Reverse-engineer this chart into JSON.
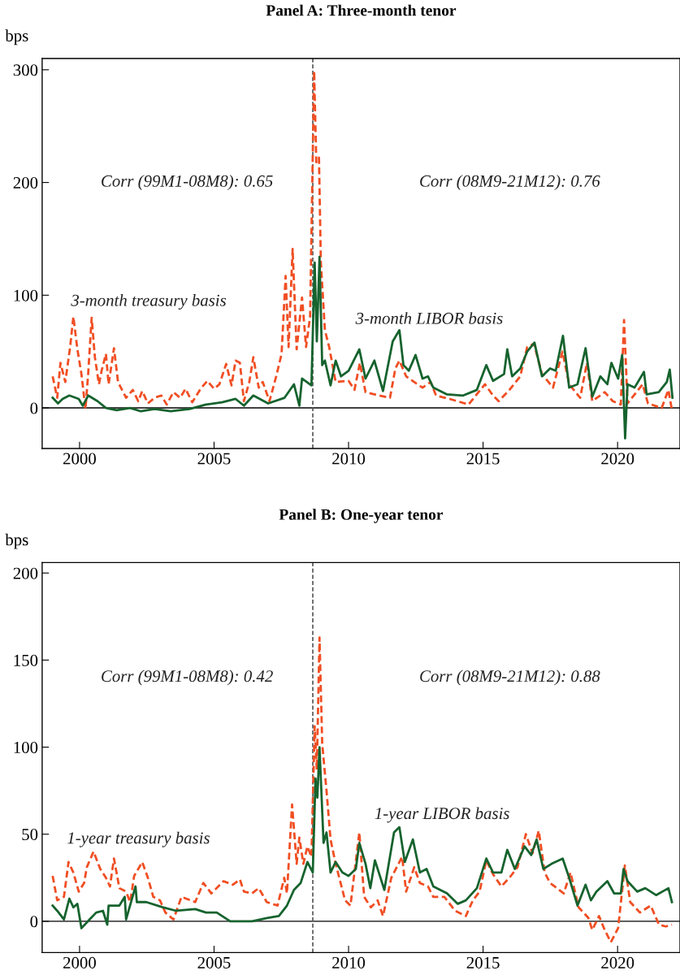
{
  "chart_data": [
    {
      "type": "line",
      "title": "Panel A: Three-month tenor",
      "ylabel": "bps",
      "xlim": [
        1998.61,
        2022.32
      ],
      "xticks": [
        2000,
        2005,
        2010,
        2015,
        2020
      ],
      "ylim": [
        -36,
        310
      ],
      "yticks": [
        0,
        100,
        200,
        300
      ],
      "grid": false,
      "ref_lines": [
        {
          "axis": "y",
          "value": 0,
          "color": "#000000",
          "line_style": "solid"
        },
        {
          "axis": "x",
          "value": 2008.67,
          "color": "#555555",
          "line_style": "dashed"
        }
      ],
      "annotations": [
        "Corr (99M1-08M8): 0.65",
        "Corr (08M9-21M12): 0.76"
      ],
      "series": [
        {
          "name": "3-month treasury basis",
          "color": "#f04e23",
          "line_style": "dashed",
          "x": [
            1999.0,
            1999.17,
            1999.29,
            1999.47,
            1999.65,
            1999.77,
            1999.92,
            2000.07,
            2000.22,
            2000.32,
            2000.45,
            2000.57,
            2000.72,
            2000.82,
            2000.98,
            2001.08,
            2001.28,
            2001.43,
            2001.58,
            2001.73,
            2001.98,
            2002.18,
            2002.33,
            2002.54,
            2002.79,
            2003.04,
            2003.24,
            2003.49,
            2003.74,
            2003.94,
            2004.19,
            2004.5,
            2004.75,
            2005.0,
            2005.2,
            2005.45,
            2005.65,
            2005.8,
            2005.96,
            2006.11,
            2006.31,
            2006.46,
            2006.66,
            2006.81,
            2007.06,
            2007.31,
            2007.51,
            2007.66,
            2007.77,
            2007.92,
            2008.07,
            2008.27,
            2008.42,
            2008.57,
            2008.72,
            2008.8,
            2008.9,
            2008.97,
            2009.12,
            2009.28,
            2009.52,
            2010.0,
            2010.22,
            2010.42,
            2010.63,
            2011.13,
            2011.54,
            2011.74,
            2011.89,
            2012.14,
            2012.44,
            2012.75,
            2013.05,
            2013.25,
            2013.76,
            2014.46,
            2015.07,
            2015.37,
            2015.58,
            2015.98,
            2016.38,
            2016.64,
            2016.89,
            2017.19,
            2017.6,
            2017.95,
            2018.2,
            2018.61,
            2018.86,
            2019.06,
            2019.52,
            2019.82,
            2020.12,
            2020.24,
            2020.37,
            2020.93,
            2021.13,
            2021.64,
            2021.89,
            2022.02
          ],
          "values": [
            28,
            9,
            40,
            23,
            54,
            81,
            52,
            30,
            -1,
            30,
            80,
            45,
            21,
            33,
            48,
            21,
            53,
            23,
            16,
            9,
            16,
            6,
            15,
            4,
            9,
            11,
            3,
            14,
            9,
            17,
            5,
            17,
            24,
            17,
            21,
            39,
            20,
            42,
            40,
            6,
            23,
            45,
            18,
            23,
            6,
            28,
            48,
            117,
            54,
            141,
            52,
            98,
            54,
            81,
            299,
            218,
            222,
            129,
            69,
            54,
            23,
            24,
            16,
            40,
            14,
            11,
            9,
            35,
            42,
            28,
            23,
            18,
            23,
            11,
            8,
            3,
            21,
            11,
            6,
            16,
            28,
            54,
            57,
            30,
            18,
            50,
            21,
            9,
            40,
            6,
            14,
            6,
            3,
            78,
            4,
            21,
            4,
            0,
            16,
            -2
          ]
        },
        {
          "name": "3-month LIBOR basis",
          "color": "#16632e",
          "line_style": "solid",
          "x": [
            1999.0,
            1999.2,
            1999.37,
            1999.62,
            1999.97,
            2000.12,
            2000.32,
            2000.67,
            2000.98,
            2001.38,
            2001.88,
            2002.28,
            2002.79,
            2003.39,
            2004.09,
            2004.7,
            2005.3,
            2005.8,
            2006.11,
            2006.46,
            2007.01,
            2007.62,
            2007.97,
            2008.17,
            2008.27,
            2008.62,
            2008.74,
            2008.82,
            2008.92,
            2009.02,
            2009.12,
            2009.33,
            2009.52,
            2009.72,
            2010.0,
            2010.4,
            2010.63,
            2010.96,
            2011.28,
            2011.64,
            2011.89,
            2012.04,
            2012.24,
            2012.49,
            2012.75,
            2012.95,
            2013.15,
            2013.66,
            2014.26,
            2014.77,
            2015.12,
            2015.37,
            2015.78,
            2015.9,
            2016.08,
            2016.38,
            2016.64,
            2016.91,
            2017.19,
            2017.49,
            2017.7,
            2017.97,
            2018.2,
            2018.51,
            2018.81,
            2019.06,
            2019.36,
            2019.62,
            2019.77,
            2020.02,
            2020.17,
            2020.28,
            2020.37,
            2020.63,
            2020.98,
            2021.08,
            2021.53,
            2021.83,
            2021.94,
            2022.04
          ],
          "values": [
            9,
            4,
            8,
            11,
            8,
            2,
            11,
            6,
            0,
            -2,
            0,
            -3,
            -1,
            -3,
            -1,
            3,
            5,
            8,
            2,
            11,
            4,
            9,
            21,
            2,
            26,
            20,
            129,
            59,
            134,
            38,
            42,
            20,
            42,
            28,
            33,
            52,
            26,
            42,
            15,
            59,
            69,
            38,
            33,
            47,
            26,
            28,
            18,
            12,
            11,
            16,
            38,
            24,
            30,
            52,
            28,
            35,
            50,
            58,
            28,
            35,
            33,
            64,
            18,
            21,
            53,
            10,
            28,
            21,
            40,
            26,
            47,
            -27,
            21,
            18,
            32,
            12,
            14,
            23,
            34,
            9
          ]
        }
      ]
    },
    {
      "type": "line",
      "title": "Panel B: One-year tenor",
      "ylabel": "bps",
      "xlim": [
        1998.61,
        2022.32
      ],
      "xticks": [
        2000,
        2005,
        2010,
        2015,
        2020
      ],
      "ylim": [
        -18,
        206
      ],
      "yticks": [
        0,
        50,
        100,
        150,
        200
      ],
      "grid": false,
      "ref_lines": [
        {
          "axis": "y",
          "value": 0,
          "color": "#000000",
          "line_style": "solid"
        },
        {
          "axis": "x",
          "value": 2008.67,
          "color": "#555555",
          "line_style": "dashed"
        }
      ],
      "annotations": [
        "Corr (99M1-08M8): 0.42",
        "Corr (08M9-21M12): 0.88"
      ],
      "series": [
        {
          "name": "1-year treasury basis",
          "color": "#f04e23",
          "line_style": "dashed",
          "x": [
            1999.0,
            1999.17,
            1999.42,
            1999.59,
            1999.77,
            1999.97,
            2000.17,
            2000.27,
            2000.52,
            2000.77,
            2000.98,
            2001.13,
            2001.28,
            2001.48,
            2001.73,
            2001.88,
            2002.03,
            2002.33,
            2002.54,
            2002.74,
            2002.99,
            2003.19,
            2003.49,
            2003.79,
            2004.3,
            2004.6,
            2004.9,
            2005.35,
            2005.7,
            2005.96,
            2006.11,
            2006.41,
            2006.66,
            2006.96,
            2007.36,
            2007.61,
            2007.71,
            2007.9,
            2008.07,
            2008.17,
            2008.32,
            2008.47,
            2008.62,
            2008.74,
            2008.82,
            2008.92,
            2009.02,
            2009.18,
            2009.33,
            2009.52,
            2009.87,
            2010.07,
            2010.4,
            2010.58,
            2010.83,
            2011.08,
            2011.28,
            2011.59,
            2011.99,
            2012.14,
            2012.44,
            2012.65,
            2012.95,
            2013.15,
            2013.56,
            2013.96,
            2014.36,
            2014.62,
            2014.87,
            2015.12,
            2015.37,
            2015.68,
            2015.98,
            2016.28,
            2016.59,
            2016.84,
            2017.07,
            2017.29,
            2017.49,
            2018.0,
            2018.25,
            2018.55,
            2018.91,
            2019.06,
            2019.31,
            2019.52,
            2019.75,
            2020.02,
            2020.27,
            2020.47,
            2020.83,
            2021.23,
            2021.54,
            2021.79,
            2022.02
          ],
          "values": [
            26,
            12,
            14,
            34,
            28,
            17,
            22,
            31,
            40,
            30,
            25,
            20,
            36,
            19,
            17,
            11,
            26,
            34,
            25,
            14,
            12,
            5,
            1,
            14,
            11,
            22,
            16,
            23,
            21,
            24,
            17,
            16,
            19,
            11,
            9,
            25,
            16,
            67,
            33,
            48,
            33,
            43,
            37,
            112,
            87,
            163,
            102,
            75,
            47,
            33,
            12,
            9,
            51,
            14,
            8,
            12,
            3,
            25,
            37,
            17,
            31,
            22,
            20,
            14,
            14,
            6,
            3,
            12,
            17,
            35,
            27,
            20,
            25,
            31,
            50,
            39,
            52,
            28,
            22,
            16,
            28,
            8,
            2,
            -5,
            3,
            -5,
            -12,
            -4,
            32,
            11,
            5,
            9,
            -2,
            -3,
            -2
          ]
        },
        {
          "name": "1-year LIBOR basis",
          "color": "#16632e",
          "line_style": "solid",
          "x": [
            1999.0,
            1999.17,
            1999.42,
            1999.62,
            1999.77,
            1999.92,
            2000.07,
            2000.37,
            2000.62,
            2000.87,
            2001.03,
            2001.08,
            2001.48,
            2001.68,
            2001.73,
            2002.08,
            2002.13,
            2002.48,
            2003.09,
            2003.59,
            2004.3,
            2004.7,
            2005.1,
            2005.6,
            2006.41,
            2007.01,
            2007.41,
            2007.71,
            2007.97,
            2008.22,
            2008.47,
            2008.67,
            2008.77,
            2008.84,
            2008.92,
            2009.07,
            2009.18,
            2009.33,
            2009.52,
            2009.77,
            2010.0,
            2010.27,
            2010.4,
            2010.63,
            2010.81,
            2010.98,
            2011.33,
            2011.69,
            2011.89,
            2012.09,
            2012.39,
            2012.65,
            2012.9,
            2013.15,
            2013.66,
            2014.06,
            2014.36,
            2014.77,
            2015.12,
            2015.37,
            2015.68,
            2015.9,
            2016.18,
            2016.54,
            2016.79,
            2016.99,
            2017.24,
            2017.55,
            2017.96,
            2018.2,
            2018.51,
            2018.81,
            2019.01,
            2019.21,
            2019.62,
            2019.87,
            2020.12,
            2020.22,
            2020.37,
            2020.73,
            2021.03,
            2021.43,
            2021.89,
            2022.02
          ],
          "values": [
            9,
            6,
            1,
            13,
            8,
            10,
            -4,
            1,
            5,
            6,
            -2,
            9,
            9,
            14,
            1,
            20,
            11,
            11,
            8,
            6,
            7,
            5,
            5,
            0,
            0,
            2,
            3,
            9,
            18,
            22,
            34,
            28,
            82,
            71,
            100,
            45,
            51,
            28,
            34,
            28,
            26,
            30,
            45,
            33,
            19,
            35,
            18,
            51,
            54,
            34,
            47,
            28,
            30,
            20,
            16,
            10,
            12,
            19,
            36,
            28,
            28,
            41,
            30,
            43,
            38,
            47,
            30,
            33,
            36,
            25,
            9,
            21,
            12,
            17,
            23,
            16,
            16,
            30,
            23,
            17,
            19,
            15,
            19,
            11
          ]
        }
      ]
    }
  ]
}
